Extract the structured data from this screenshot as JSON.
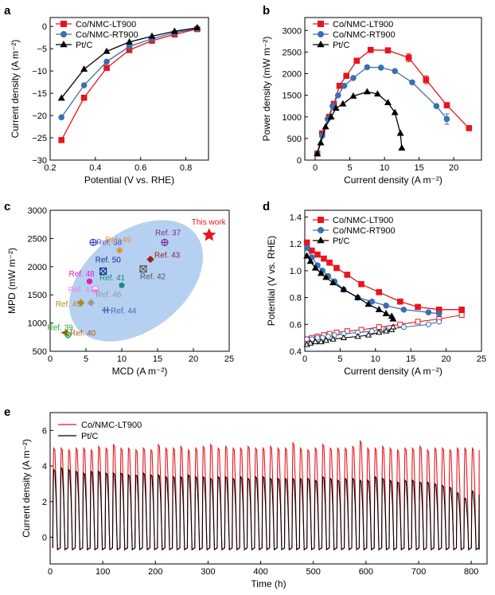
{
  "chart_data": [
    {
      "panel": "a",
      "type": "line",
      "xlabel": "Potential (V vs. RHE)",
      "ylabel": "Current density (A m⁻²)",
      "xlim": [
        0.2,
        0.9
      ],
      "ylim": [
        -30,
        2
      ],
      "xticks": [
        0.2,
        0.4,
        0.6,
        0.8
      ],
      "yticks": [
        0,
        -5,
        -10,
        -15,
        -20,
        -25,
        -30
      ],
      "xtick_labels": [
        "0.2",
        "0.4",
        "0.6",
        "0.8"
      ],
      "ytick_labels": [
        "0",
        "−5",
        "−10",
        "−15",
        "−20",
        "−25",
        "−30"
      ],
      "legend": "top-left",
      "series": [
        {
          "name": "Co/NMC-LT900",
          "color": "#e8141c",
          "marker": "square",
          "x": [
            0.25,
            0.35,
            0.45,
            0.55,
            0.65,
            0.75,
            0.85
          ],
          "y": [
            -25.5,
            -16,
            -9.3,
            -5.3,
            -3.2,
            -1.8,
            -0.6
          ]
        },
        {
          "name": "Co/NMC-RT900",
          "color": "#3a6fb0",
          "marker": "circle",
          "x": [
            0.25,
            0.35,
            0.45,
            0.55,
            0.65,
            0.75,
            0.85
          ],
          "y": [
            -20.4,
            -13.2,
            -7.9,
            -4.5,
            -2.8,
            -1.4,
            -0.5
          ]
        },
        {
          "name": "Pt/C",
          "color": "#000000",
          "marker": "triangle",
          "x": [
            0.25,
            0.35,
            0.45,
            0.55,
            0.65,
            0.75,
            0.85
          ],
          "y": [
            -16.1,
            -9.6,
            -5.6,
            -3.5,
            -2.2,
            -1.1,
            -0.3
          ]
        }
      ]
    },
    {
      "panel": "b",
      "type": "line",
      "xlabel": "Current density (A m⁻²)",
      "ylabel": "Power density (mW m⁻²)",
      "xlim": [
        -1.5,
        24
      ],
      "ylim": [
        0,
        3300
      ],
      "xticks": [
        0,
        5,
        10,
        15,
        20
      ],
      "yticks": [
        0,
        500,
        1000,
        1500,
        2000,
        2500,
        3000
      ],
      "xtick_labels": [
        "0",
        "5",
        "10",
        "15",
        "20"
      ],
      "ytick_labels": [
        "0",
        "500",
        "1000",
        "1500",
        "2000",
        "2500",
        "3000"
      ],
      "legend": "top-left",
      "series": [
        {
          "name": "Co/NMC-LT900",
          "color": "#e8141c",
          "marker": "square",
          "x": [
            0.3,
            1,
            2,
            2.7,
            3.5,
            4.5,
            6,
            8,
            10.5,
            13.5,
            16,
            19,
            22.2
          ],
          "y": [
            150,
            620,
            1000,
            1300,
            1720,
            1950,
            2300,
            2550,
            2540,
            2370,
            1860,
            1270,
            740
          ],
          "err": [
            0,
            0,
            0,
            0,
            0,
            0,
            0,
            0,
            0,
            90,
            90,
            60,
            0
          ]
        },
        {
          "name": "Co/NMC-RT900",
          "color": "#3a6fb0",
          "marker": "circle",
          "x": [
            0.3,
            1,
            1.8,
            2.5,
            3.3,
            4.2,
            5.5,
            7.5,
            9.5,
            11.5,
            14,
            17.5,
            19
          ],
          "y": [
            150,
            560,
            950,
            1250,
            1500,
            1720,
            1900,
            2150,
            2140,
            2060,
            1800,
            1250,
            950
          ],
          "err": [
            0,
            0,
            0,
            0,
            0,
            0,
            0,
            0,
            0,
            0,
            0,
            0,
            120
          ]
        },
        {
          "name": "Pt/C",
          "color": "#000000",
          "marker": "triangle",
          "x": [
            0.3,
            0.8,
            1.5,
            2.3,
            3,
            4,
            5.5,
            7.5,
            9,
            10.5,
            11.5,
            12.3,
            12.5
          ],
          "y": [
            150,
            400,
            770,
            1000,
            1200,
            1300,
            1480,
            1580,
            1530,
            1330,
            1100,
            620,
            280
          ]
        }
      ]
    },
    {
      "panel": "c",
      "type": "scatter",
      "xlabel": "MCD (A m⁻²)",
      "ylabel": "MPD (mW m⁻²)",
      "xlim": [
        0,
        25
      ],
      "ylim": [
        500,
        3000
      ],
      "xticks": [
        0,
        5,
        10,
        15,
        20,
        25
      ],
      "yticks": [
        500,
        1000,
        1500,
        2000,
        2500,
        3000
      ],
      "xtick_labels": [
        "0",
        "5",
        "10",
        "15",
        "20",
        "25"
      ],
      "ytick_labels": [
        "500",
        "1000",
        "1500",
        "2000",
        "2500",
        "3000"
      ],
      "points": [
        {
          "label": "This work",
          "x": 22.2,
          "y": 2560,
          "color": "#e8141c",
          "marker": "star"
        },
        {
          "label": "Ref. 37",
          "x": 16,
          "y": 2430,
          "color": "#7b2d8e",
          "marker": "crosscircle"
        },
        {
          "label": "Ref. 38",
          "x": 6,
          "y": 2430,
          "color": "#4040d0",
          "marker": "crosscircle"
        },
        {
          "label": "Ref. 49",
          "x": 9.7,
          "y": 2290,
          "color": "#f08a24",
          "marker": "asterisk"
        },
        {
          "label": "Ref. 43",
          "x": 14,
          "y": 2130,
          "color": "#9b2020",
          "marker": "diamond"
        },
        {
          "label": "Ref. 50",
          "x": 7.4,
          "y": 1920,
          "color": "#1a2a80",
          "marker": "xsquare"
        },
        {
          "label": "Ref. 42",
          "x": 13,
          "y": 1960,
          "color": "#555555",
          "marker": "xsquare"
        },
        {
          "label": "Ref. 48",
          "x": 5.5,
          "y": 1740,
          "color": "#e020c0",
          "marker": "hexagon"
        },
        {
          "label": "Ref. 41",
          "x": 10,
          "y": 1670,
          "color": "#1a8a7a",
          "marker": "pentagon"
        },
        {
          "label": "Ref. 47",
          "x": 6.3,
          "y": 1600,
          "color": "#f080e0",
          "marker": "halfcircle"
        },
        {
          "label": "Ref. 46",
          "x": 5.7,
          "y": 1360,
          "color": "#999999",
          "marker": "diamond"
        },
        {
          "label": "Ref. 45",
          "x": 4.3,
          "y": 1360,
          "color": "#b08a20",
          "marker": "diamond"
        },
        {
          "label": "Ref. 44",
          "x": 7.8,
          "y": 1230,
          "color": "#3a6fb0",
          "marker": "crossbars"
        },
        {
          "label": "Ref. 40",
          "x": 2,
          "y": 830,
          "color": "#b05010",
          "marker": "triangle-left"
        },
        {
          "label": "Ref. 39",
          "x": 2.5,
          "y": 790,
          "color": "#30a030",
          "marker": "xdiamond"
        }
      ]
    },
    {
      "panel": "d",
      "type": "line",
      "xlabel": "Current density (A m⁻²)",
      "ylabel": "Potential (V vs. RHE)",
      "xlim": [
        0,
        25
      ],
      "ylim": [
        0.4,
        1.45
      ],
      "xticks": [
        0,
        5,
        10,
        15,
        20,
        25
      ],
      "yticks": [
        0.4,
        0.6,
        0.8,
        1.0,
        1.2,
        1.4
      ],
      "xtick_labels": [
        "0",
        "5",
        "10",
        "15",
        "20",
        "25"
      ],
      "ytick_labels": [
        "0.4",
        "0.6",
        "0.8",
        "1.0",
        "1.2",
        "1.4"
      ],
      "legend": "top-left",
      "series": [
        {
          "name": "Co/NMC-LT900",
          "color": "#e8141c",
          "marker": "square",
          "x": [
            0.3,
            1,
            1.8,
            2.7,
            3.5,
            4.5,
            6,
            8,
            10.5,
            13.5,
            16,
            19,
            22.2
          ],
          "y": [
            1.21,
            1.15,
            1.12,
            1.09,
            1.06,
            1.02,
            0.97,
            0.9,
            0.84,
            0.77,
            0.73,
            0.71,
            0.71
          ],
          "anode_y": [
            0.49,
            0.5,
            0.51,
            0.52,
            0.53,
            0.54,
            0.55,
            0.56,
            0.58,
            0.6,
            0.62,
            0.64,
            0.67
          ]
        },
        {
          "name": "Co/NMC-RT900",
          "color": "#3a6fb0",
          "marker": "circle",
          "x": [
            0.3,
            1,
            1.8,
            2.5,
            3.3,
            4.2,
            5.5,
            7.5,
            9.5,
            11.5,
            14,
            17.5,
            19
          ],
          "y": [
            1.17,
            1.1,
            1.04,
            1.0,
            0.96,
            0.92,
            0.86,
            0.8,
            0.77,
            0.74,
            0.71,
            0.69,
            0.68
          ],
          "anode_y": [
            0.49,
            0.49,
            0.5,
            0.5,
            0.51,
            0.52,
            0.53,
            0.54,
            0.55,
            0.56,
            0.58,
            0.6,
            0.62
          ]
        },
        {
          "name": "Pt/C",
          "color": "#000000",
          "marker": "triangle",
          "x": [
            0.3,
            0.8,
            1.5,
            2.3,
            3,
            4,
            5.5,
            7.5,
            9,
            10.5,
            11.5,
            12.3,
            12.5
          ],
          "y": [
            1.11,
            1.07,
            1.02,
            0.98,
            0.95,
            0.91,
            0.86,
            0.8,
            0.75,
            0.71,
            0.68,
            0.66,
            0.64
          ],
          "anode_y": [
            0.45,
            0.46,
            0.47,
            0.47,
            0.48,
            0.49,
            0.5,
            0.51,
            0.52,
            0.54,
            0.55,
            0.56,
            0.58
          ]
        }
      ]
    },
    {
      "panel": "e",
      "type": "line",
      "xlabel": "Time (h)",
      "ylabel": "Current density (A m⁻²)",
      "xlim": [
        0,
        830
      ],
      "ylim": [
        -1.5,
        7
      ],
      "xticks": [
        0,
        100,
        200,
        300,
        400,
        500,
        600,
        700,
        800
      ],
      "yticks": [
        0,
        2,
        4,
        6
      ],
      "xtick_labels": [
        "0",
        "100",
        "200",
        "300",
        "400",
        "500",
        "600",
        "700",
        "800"
      ],
      "ytick_labels": [
        "0",
        "2",
        "4",
        "6"
      ],
      "legend": "top-left",
      "cycle_period_h": 14.2,
      "cycle_start_h": 5,
      "cycle_end_h": 815,
      "baseline": -0.6,
      "series": [
        {
          "name": "Co/NMC-LT900",
          "color": "#e8141c",
          "peaks": [
            5.0,
            5.0,
            4.9,
            5.0,
            5.0,
            4.9,
            5.1,
            5.0,
            5.2,
            5.0,
            5.0,
            4.9,
            5.0,
            4.9,
            5.2,
            5.0,
            5.0,
            5.1,
            4.9,
            5.0,
            5.1,
            5.2,
            5.0,
            5.1,
            5.0,
            5.0,
            5.1,
            5.0,
            5.0,
            5.1,
            5.0,
            5.0,
            5.3,
            5.0,
            4.9,
            5.0,
            5.2,
            5.0,
            5.0,
            5.0,
            5.1,
            5.4,
            5.0,
            5.0,
            5.1,
            5.0,
            4.9,
            5.0,
            5.0,
            5.1,
            4.9,
            5.0,
            5.0,
            4.9,
            5.0,
            5.0,
            5.0,
            4.9
          ]
        },
        {
          "name": "Pt/C",
          "color": "#000000",
          "peaks": [
            3.8,
            3.9,
            3.8,
            3.7,
            3.6,
            3.7,
            3.7,
            3.6,
            3.6,
            3.6,
            3.5,
            3.5,
            3.6,
            3.5,
            3.5,
            3.4,
            3.4,
            3.4,
            3.5,
            3.4,
            3.4,
            3.3,
            3.4,
            3.4,
            3.3,
            3.4,
            3.3,
            3.4,
            3.4,
            3.3,
            3.3,
            3.3,
            3.3,
            3.3,
            3.3,
            3.2,
            3.4,
            3.3,
            3.2,
            3.3,
            3.3,
            3.2,
            3.2,
            3.4,
            3.3,
            3.2,
            3.1,
            3.2,
            3.2,
            3.1,
            3.1,
            3.0,
            2.9,
            2.8,
            2.5,
            2.2,
            2.6,
            2.4
          ]
        }
      ]
    }
  ]
}
